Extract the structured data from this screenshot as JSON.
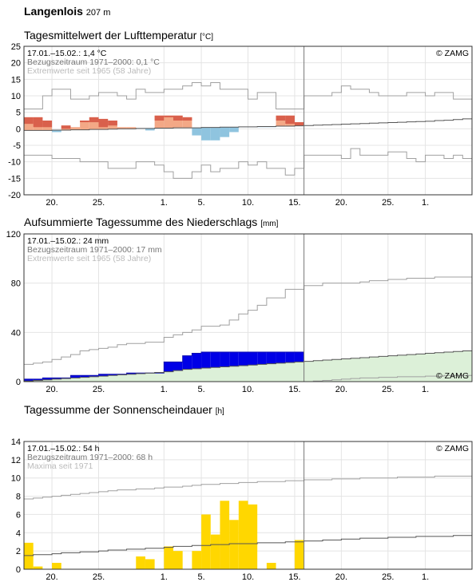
{
  "station": {
    "name": "Langenlois",
    "elevation": "207 m"
  },
  "chart_data": [
    {
      "type": "bar",
      "title": "Tagesmittelwert der Lufttemperatur",
      "unit": "[°C]",
      "info": [
        "17.01.–15.02.: 1,4 °C",
        "Bezugszeitraum 1971–2000: 0,1 °C",
        "Extremwerte seit 1965 (58 Jahre)"
      ],
      "copyright": "© ZAMG",
      "ylim": [
        -20,
        25
      ],
      "yticks": [
        -20,
        -15,
        -10,
        -5,
        0,
        5,
        10,
        15,
        20,
        25
      ],
      "xlim": [
        0,
        48
      ],
      "xticks": [
        {
          "x": 3,
          "label": "20."
        },
        {
          "x": 8,
          "label": "25."
        },
        {
          "x": 15,
          "label": "1."
        },
        {
          "x": 19,
          "label": "5."
        },
        {
          "x": 24,
          "label": "10."
        },
        {
          "x": 29,
          "label": "15."
        },
        {
          "x": 34,
          "label": "20."
        },
        {
          "x": 39,
          "label": "25."
        },
        {
          "x": 43,
          "label": "1."
        }
      ],
      "today_x": 30,
      "series": [
        {
          "values": [
            3.5,
            3.5,
            2.5,
            -1.0,
            1.0,
            0.5,
            2.5,
            3.5,
            3.0,
            2.5,
            0.5,
            0.5,
            0.0,
            -0.5,
            4.0,
            4.0,
            4.0,
            3.5,
            -2.0,
            -3.5,
            -3.5,
            -2.5,
            -1.0,
            0.5,
            0.5,
            0.5,
            0.5,
            4.0,
            4.0,
            2.0
          ]
        },
        {
          "values": [
            1.5,
            0.5,
            0.5,
            -0.5,
            0.0,
            0.5,
            2.0,
            2.0,
            0.5,
            1.0,
            0.5,
            0.5,
            0.0,
            -0.5,
            2.5,
            3.5,
            2.5,
            2.5,
            -0.5,
            -2.0,
            -1.5,
            -1.0,
            0.5,
            0.5,
            0.5,
            0.5,
            0.5,
            2.5,
            1.5,
            1.0
          ]
        },
        {
          "values": [
            6,
            6,
            10,
            12,
            12,
            9,
            9,
            10,
            11,
            11,
            10,
            9,
            12,
            11,
            11,
            12,
            12,
            13,
            14,
            13,
            14,
            12,
            12,
            12,
            9,
            11,
            11,
            6,
            6,
            6,
            10,
            10,
            10,
            11,
            13,
            12,
            12,
            11,
            10,
            10,
            10,
            11,
            11,
            10,
            11,
            11,
            9,
            9
          ]
        },
        {
          "values": [
            -0.5,
            -0.5,
            -0.5,
            -0.4,
            -0.4,
            -0.3,
            -0.3,
            -0.2,
            -0.2,
            -0.1,
            0.0,
            0.0,
            0.1,
            0.1,
            0.2,
            0.2,
            0.3,
            0.3,
            0.3,
            0.4,
            0.4,
            0.5,
            0.5,
            0.6,
            0.6,
            0.7,
            0.7,
            0.8,
            0.8,
            0.9,
            1.0,
            1.1,
            1.2,
            1.3,
            1.4,
            1.5,
            1.6,
            1.7,
            1.8,
            1.9,
            2.0,
            2.1,
            2.2,
            2.3,
            2.5,
            2.6,
            2.8,
            3.0
          ]
        },
        {
          "values": [
            -8,
            -8,
            -8,
            -9,
            -9,
            -9,
            -10,
            -10,
            -10,
            -12,
            -12,
            -12,
            -10,
            -10,
            -11,
            -13,
            -15,
            -15,
            -13,
            -11,
            -13,
            -12,
            -12,
            -10,
            -11,
            -10,
            -12,
            -12,
            -14,
            -12,
            -8,
            -8,
            -8,
            -8,
            -9,
            -6,
            -8,
            -8,
            -8,
            -7,
            -7,
            -9,
            -10,
            -8,
            -8,
            -9,
            -8,
            -9
          ]
        }
      ]
    },
    {
      "type": "area",
      "title": "Aufsummierte Tagessumme des Niederschlags",
      "unit": "[mm]",
      "info": [
        "17.01.–15.02.: 24 mm",
        "Bezugszeitraum 1971–2000: 17 mm",
        "Extremwerte seit 1965 (58 Jahre)"
      ],
      "copyright": "© ZAMG",
      "ylim": [
        0,
        120
      ],
      "yticks": [
        0,
        40,
        80,
        120
      ],
      "xlim": [
        0,
        48
      ],
      "xticks": [
        {
          "x": 3,
          "label": "20."
        },
        {
          "x": 8,
          "label": "25."
        },
        {
          "x": 15,
          "label": "1."
        },
        {
          "x": 19,
          "label": "5."
        },
        {
          "x": 24,
          "label": "10."
        },
        {
          "x": 29,
          "label": "15."
        },
        {
          "x": 34,
          "label": "20."
        },
        {
          "x": 39,
          "label": "25."
        },
        {
          "x": 43,
          "label": "1."
        }
      ],
      "today_x": 30,
      "series": [
        {
          "values": [
            2,
            2,
            3,
            3,
            3,
            5,
            5,
            5,
            6,
            6,
            6,
            7,
            7,
            7,
            7,
            16,
            16,
            21,
            23,
            24,
            24,
            24,
            24,
            24,
            24,
            24,
            24,
            24,
            24,
            24
          ]
        },
        {
          "values": [
            0.5,
            1.0,
            1.5,
            2.0,
            2.5,
            3.0,
            3.5,
            4.0,
            4.5,
            5.0,
            5.5,
            6.0,
            6.5,
            7.0,
            7.5,
            8.0,
            9.0,
            10.0,
            10.5,
            11.0,
            11.5,
            12.0,
            12.5,
            13.0,
            13.5,
            14.0,
            14.5,
            15.0,
            15.5,
            16.0,
            16.5,
            17.0,
            17.5,
            18.0,
            18.5,
            19.0,
            19.5,
            20.0,
            20.5,
            21.0,
            21.5,
            22.0,
            22.5,
            23.0,
            23.5,
            24.0,
            24.5,
            25.0
          ]
        },
        {
          "values": [
            14,
            15,
            16,
            18,
            20,
            22,
            25,
            26,
            27,
            28,
            30,
            31,
            31,
            32,
            32,
            36,
            38,
            40,
            42,
            45,
            45,
            46,
            50,
            55,
            58,
            62,
            68,
            68,
            75,
            75,
            78,
            78,
            80,
            80,
            80,
            80,
            81,
            82,
            82,
            83,
            83,
            84,
            84,
            84,
            85,
            85,
            85,
            85
          ]
        },
        {
          "values": [
            0,
            0,
            0,
            0,
            0,
            0,
            0,
            0,
            0,
            0,
            0,
            0,
            0,
            0,
            0,
            0,
            0,
            0,
            0,
            0,
            0,
            0,
            0,
            0,
            0,
            0,
            0,
            0,
            0,
            0,
            0,
            0.5,
            1.0,
            1.5,
            2.0,
            2.5,
            3.0,
            3.0,
            3.5,
            3.5,
            4.0,
            4.0,
            4.0,
            4.5,
            4.5,
            5.0,
            5.0,
            5.0
          ]
        }
      ]
    },
    {
      "type": "bar",
      "title": "Tagessumme der Sonnenscheindauer",
      "unit": "[h]",
      "info": [
        "17.01.–15.02.: 54 h",
        "Bezugszeitraum 1971–2000: 68 h",
        "Maxima seit 1971"
      ],
      "copyright": "© ZAMG",
      "ylim": [
        0,
        14
      ],
      "yticks": [
        0,
        2,
        4,
        6,
        8,
        10,
        12,
        14
      ],
      "xlim": [
        0,
        48
      ],
      "xticks": [
        {
          "x": 3,
          "label": "20."
        },
        {
          "x": 8,
          "label": "25."
        },
        {
          "x": 15,
          "label": "1."
        },
        {
          "x": 19,
          "label": "5."
        },
        {
          "x": 24,
          "label": "10."
        },
        {
          "x": 29,
          "label": "15."
        },
        {
          "x": 34,
          "label": "20."
        },
        {
          "x": 39,
          "label": "25."
        },
        {
          "x": 43,
          "label": "1."
        }
      ],
      "today_x": 30,
      "series": [
        {
          "values": [
            2.9,
            0.3,
            0,
            0.7,
            0,
            0,
            0,
            0,
            0,
            0,
            0,
            0,
            1.4,
            1.1,
            0,
            2.5,
            2.0,
            0,
            2.0,
            6.0,
            3.8,
            7.5,
            5.4,
            7.5,
            7.1,
            0,
            0.7,
            0,
            0,
            3.2
          ]
        },
        {
          "values": [
            7.7,
            7.8,
            7.9,
            8.0,
            8.1,
            8.2,
            8.3,
            8.4,
            8.5,
            8.6,
            8.7,
            8.7,
            8.8,
            8.8,
            8.9,
            9.0,
            9.0,
            9.1,
            9.2,
            9.3,
            9.3,
            9.4,
            9.4,
            9.5,
            9.5,
            9.6,
            9.6,
            9.6,
            9.7,
            9.7,
            9.8,
            9.8,
            9.8,
            9.9,
            9.9,
            9.9,
            10.0,
            10.0,
            10.0,
            10.0,
            10.1,
            10.1,
            10.1,
            10.1,
            10.2,
            10.2,
            10.2,
            10.2
          ]
        },
        {
          "values": [
            1.5,
            1.6,
            1.6,
            1.7,
            1.8,
            1.8,
            1.9,
            1.9,
            2.0,
            2.1,
            2.1,
            2.2,
            2.2,
            2.3,
            2.3,
            2.4,
            2.5,
            2.5,
            2.6,
            2.6,
            2.7,
            2.7,
            2.8,
            2.8,
            2.8,
            2.9,
            2.9,
            2.9,
            3.0,
            3.0,
            3.1,
            3.1,
            3.2,
            3.2,
            3.3,
            3.3,
            3.4,
            3.4,
            3.4,
            3.5,
            3.5,
            3.5,
            3.6,
            3.6,
            3.6,
            3.6,
            3.7,
            3.7
          ]
        }
      ]
    }
  ]
}
